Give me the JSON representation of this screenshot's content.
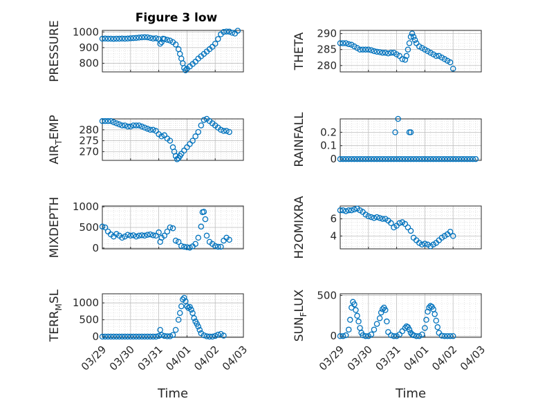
{
  "chart_data": {
    "type": "scatter",
    "title": "Figure 3 low",
    "xlabel": "Time",
    "x_range": [
      "03/29",
      "04/03"
    ],
    "x_ticks": [
      "03/29",
      "03/30",
      "03/31",
      "04/01",
      "04/02",
      "04/03"
    ],
    "grid": true,
    "marker": "open-circle",
    "series_color": "#0072BD",
    "panels": [
      {
        "ylabel": "PRESSURE",
        "ylim": [
          745,
          1010
        ],
        "yticks": [
          "800",
          "900",
          "1000"
        ],
        "ytick_values": [
          800,
          900,
          1000
        ],
        "x": [
          0,
          0.1,
          0.2,
          0.3,
          0.4,
          0.5,
          0.6,
          0.7,
          0.8,
          0.9,
          1.0,
          1.1,
          1.2,
          1.3,
          1.4,
          1.5,
          1.6,
          1.7,
          1.8,
          1.9,
          2.0,
          2.05,
          2.1,
          2.15,
          2.2,
          2.3,
          2.4,
          2.5,
          2.6,
          2.7,
          2.75,
          2.8,
          2.85,
          2.9,
          2.95,
          3.0,
          3.1,
          3.2,
          3.3,
          3.4,
          3.5,
          3.6,
          3.7,
          3.8,
          3.9,
          4.0,
          4.1,
          4.2,
          4.3,
          4.4,
          4.5,
          4.6,
          4.7,
          4.8
        ],
        "y": [
          957,
          958,
          957,
          957,
          956,
          957,
          957,
          958,
          957,
          958,
          960,
          961,
          962,
          964,
          966,
          967,
          966,
          962,
          958,
          960,
          955,
          925,
          935,
          957,
          955,
          950,
          945,
          935,
          920,
          890,
          860,
          830,
          800,
          770,
          755,
          765,
          780,
          795,
          810,
          830,
          845,
          860,
          875,
          890,
          905,
          925,
          955,
          985,
          1000,
          1003,
          1002,
          995,
          990,
          1008
        ]
      },
      {
        "ylabel": "THETA",
        "ylim": [
          278,
          291
        ],
        "yticks": [
          "280",
          "285",
          "290"
        ],
        "ytick_values": [
          280,
          285,
          290
        ],
        "x": [
          0,
          0.1,
          0.2,
          0.3,
          0.4,
          0.5,
          0.6,
          0.7,
          0.8,
          0.9,
          1.0,
          1.1,
          1.2,
          1.3,
          1.4,
          1.5,
          1.6,
          1.7,
          1.8,
          1.9,
          2.0,
          2.1,
          2.2,
          2.3,
          2.35,
          2.4,
          2.45,
          2.5,
          2.55,
          2.6,
          2.65,
          2.7,
          2.8,
          2.9,
          3.0,
          3.1,
          3.2,
          3.3,
          3.4,
          3.5,
          3.6,
          3.7,
          3.8,
          3.9,
          4.0
        ],
        "y": [
          287,
          287,
          287,
          286.7,
          286.5,
          286,
          285.5,
          285,
          285,
          285,
          285,
          284.8,
          284.5,
          284.3,
          284.2,
          284,
          284,
          283.8,
          284,
          284,
          283.5,
          283,
          282,
          281.8,
          283,
          285,
          287,
          289,
          290,
          289,
          288,
          287,
          286,
          285.5,
          285,
          284.5,
          284,
          283.5,
          283,
          283,
          282.5,
          282,
          281.5,
          281,
          279
        ]
      },
      {
        "ylabel": "AIR_T EMP",
        "ylim": [
          266,
          285
        ],
        "yticks": [
          "270",
          "275",
          "280"
        ],
        "ytick_values": [
          270,
          275,
          280
        ],
        "x": [
          0,
          0.1,
          0.2,
          0.3,
          0.4,
          0.5,
          0.6,
          0.7,
          0.8,
          0.9,
          1.0,
          1.1,
          1.2,
          1.3,
          1.4,
          1.5,
          1.6,
          1.7,
          1.8,
          1.9,
          2.0,
          2.1,
          2.2,
          2.3,
          2.4,
          2.5,
          2.55,
          2.6,
          2.65,
          2.7,
          2.75,
          2.8,
          2.9,
          3.0,
          3.1,
          3.2,
          3.3,
          3.4,
          3.5,
          3.6,
          3.7,
          3.8,
          3.9,
          4.0,
          4.1,
          4.2,
          4.3,
          4.4,
          4.5
        ],
        "y": [
          284,
          284,
          284,
          284,
          283.5,
          283,
          282.5,
          282,
          282,
          281.5,
          281.5,
          282,
          282,
          282,
          281.5,
          281,
          280.5,
          280,
          280,
          279.5,
          278,
          277,
          277.5,
          276,
          275,
          272,
          270,
          268,
          266.5,
          267,
          268,
          269,
          270.5,
          272,
          273.5,
          275,
          277,
          279,
          282,
          284.5,
          285,
          284,
          283,
          282,
          281,
          280,
          279.5,
          279.5,
          279
        ]
      },
      {
        "ylabel": "RAINFALL",
        "ylim": [
          -0.01,
          0.3
        ],
        "yticks": [
          "0",
          "0.1",
          "0.2"
        ],
        "ytick_values": [
          0,
          0.1,
          0.2
        ],
        "x": [
          0,
          0.1,
          0.2,
          0.3,
          0.4,
          0.5,
          0.6,
          0.7,
          0.8,
          0.9,
          1.0,
          1.1,
          1.2,
          1.3,
          1.4,
          1.5,
          1.6,
          1.7,
          1.8,
          1.9,
          2.0,
          2.1,
          2.2,
          2.3,
          2.4,
          2.5,
          2.6,
          2.7,
          2.8,
          2.9,
          3.0,
          3.1,
          3.2,
          3.3,
          3.4,
          3.5,
          3.6,
          3.7,
          3.8,
          3.9,
          4.0,
          4.1,
          4.2,
          4.3,
          4.4,
          4.5,
          4.6,
          4.7,
          4.8,
          1.95,
          2.05,
          2.45,
          2.5
        ],
        "y": [
          0,
          0,
          0,
          0,
          0,
          0,
          0,
          0,
          0,
          0,
          0,
          0,
          0,
          0,
          0,
          0,
          0,
          0,
          0,
          0,
          0,
          0,
          0,
          0,
          0,
          0,
          0,
          0,
          0,
          0,
          0,
          0,
          0,
          0,
          0,
          0,
          0,
          0,
          0,
          0,
          0,
          0,
          0,
          0,
          0,
          0,
          0,
          0,
          0,
          0.2,
          0.3,
          0.2,
          0.2
        ]
      },
      {
        "ylabel": "MIXDEPTH",
        "ylim": [
          -20,
          1020
        ],
        "yticks": [
          "0",
          "500",
          "1000"
        ],
        "ytick_values": [
          0,
          500,
          1000
        ],
        "x": [
          0,
          0.1,
          0.2,
          0.3,
          0.4,
          0.5,
          0.6,
          0.7,
          0.8,
          0.9,
          1.0,
          1.1,
          1.2,
          1.3,
          1.4,
          1.5,
          1.6,
          1.7,
          1.8,
          1.9,
          2.0,
          2.05,
          2.1,
          2.2,
          2.3,
          2.4,
          2.5,
          2.6,
          2.7,
          2.8,
          2.9,
          3.0,
          3.1,
          3.2,
          3.3,
          3.4,
          3.5,
          3.55,
          3.6,
          3.65,
          3.7,
          3.8,
          3.9,
          4.0,
          4.1,
          4.2,
          4.3,
          4.4,
          4.5
        ],
        "y": [
          520,
          500,
          400,
          330,
          280,
          340,
          300,
          250,
          280,
          320,
          300,
          310,
          280,
          300,
          310,
          300,
          320,
          330,
          310,
          300,
          380,
          150,
          250,
          300,
          400,
          500,
          480,
          180,
          150,
          50,
          30,
          20,
          10,
          40,
          100,
          250,
          520,
          870,
          880,
          700,
          300,
          150,
          100,
          50,
          30,
          30,
          180,
          250,
          200
        ]
      },
      {
        "ylabel": "H2OMIXRA",
        "ylim": [
          2.5,
          7.5
        ],
        "yticks": [
          "4",
          "6"
        ],
        "ytick_values": [
          4,
          6
        ],
        "x": [
          0,
          0.1,
          0.2,
          0.3,
          0.4,
          0.5,
          0.6,
          0.7,
          0.8,
          0.9,
          1.0,
          1.1,
          1.2,
          1.3,
          1.4,
          1.5,
          1.6,
          1.7,
          1.8,
          1.9,
          2.0,
          2.1,
          2.2,
          2.3,
          2.4,
          2.5,
          2.6,
          2.7,
          2.8,
          2.9,
          3.0,
          3.1,
          3.2,
          3.3,
          3.4,
          3.5,
          3.6,
          3.7,
          3.8,
          3.9,
          4.0
        ],
        "y": [
          7.0,
          7.0,
          6.9,
          7.0,
          7.0,
          7.1,
          7.2,
          7.0,
          6.8,
          6.5,
          6.3,
          6.2,
          6.1,
          6.2,
          6.1,
          6.0,
          6.0,
          5.8,
          5.5,
          5.0,
          5.2,
          5.5,
          5.6,
          5.4,
          5.0,
          4.6,
          3.8,
          3.5,
          3.2,
          3.0,
          3.1,
          3.0,
          2.8,
          3.0,
          3.2,
          3.5,
          3.8,
          4.0,
          4.2,
          4.5,
          4.0
        ]
      },
      {
        "ylabel": "TERR_M SL",
        "ylim": [
          -20,
          1270
        ],
        "yticks": [
          "0",
          "500",
          "1000"
        ],
        "ytick_values": [
          0,
          500,
          1000
        ],
        "x": [
          0,
          0.1,
          0.2,
          0.3,
          0.4,
          0.5,
          0.6,
          0.7,
          0.8,
          0.9,
          1.0,
          1.1,
          1.2,
          1.3,
          1.4,
          1.5,
          1.6,
          1.7,
          1.8,
          1.9,
          2.0,
          2.05,
          2.1,
          2.2,
          2.3,
          2.4,
          2.5,
          2.6,
          2.7,
          2.75,
          2.8,
          2.85,
          2.9,
          2.95,
          3.0,
          3.05,
          3.1,
          3.15,
          3.2,
          3.25,
          3.3,
          3.35,
          3.4,
          3.45,
          3.5,
          3.6,
          3.7,
          3.8,
          3.9,
          4.0,
          4.1,
          4.2,
          4.3
        ],
        "y": [
          0,
          0,
          0,
          0,
          0,
          0,
          0,
          0,
          0,
          0,
          0,
          0,
          0,
          0,
          0,
          0,
          0,
          0,
          0,
          0,
          20,
          200,
          50,
          20,
          10,
          10,
          50,
          200,
          500,
          700,
          900,
          1100,
          1150,
          1050,
          900,
          850,
          880,
          800,
          700,
          550,
          450,
          380,
          300,
          200,
          100,
          40,
          10,
          0,
          0,
          20,
          60,
          80,
          30
        ]
      },
      {
        "ylabel": "SUN_F LUX",
        "ylim": [
          -15,
          520
        ],
        "yticks": [
          "0",
          "500"
        ],
        "ytick_values": [
          0,
          500
        ],
        "x": [
          0,
          0.1,
          0.2,
          0.3,
          0.35,
          0.4,
          0.45,
          0.5,
          0.55,
          0.6,
          0.65,
          0.7,
          0.75,
          0.8,
          0.9,
          1.0,
          1.1,
          1.2,
          1.3,
          1.4,
          1.45,
          1.5,
          1.55,
          1.6,
          1.65,
          1.7,
          1.8,
          1.9,
          2.0,
          2.1,
          2.2,
          2.3,
          2.35,
          2.4,
          2.45,
          2.5,
          2.55,
          2.6,
          2.7,
          2.8,
          2.9,
          3.0,
          3.05,
          3.1,
          3.15,
          3.2,
          3.25,
          3.3,
          3.35,
          3.4,
          3.45,
          3.5,
          3.6,
          3.7,
          3.8,
          3.9,
          4.0
        ],
        "y": [
          0,
          0,
          10,
          80,
          200,
          350,
          420,
          390,
          320,
          250,
          180,
          100,
          40,
          10,
          0,
          0,
          20,
          80,
          150,
          220,
          290,
          330,
          350,
          320,
          180,
          50,
          10,
          0,
          0,
          20,
          60,
          100,
          120,
          110,
          80,
          40,
          20,
          10,
          0,
          0,
          20,
          100,
          200,
          300,
          350,
          370,
          360,
          330,
          270,
          190,
          110,
          40,
          5,
          0,
          0,
          0,
          0
        ]
      }
    ]
  }
}
